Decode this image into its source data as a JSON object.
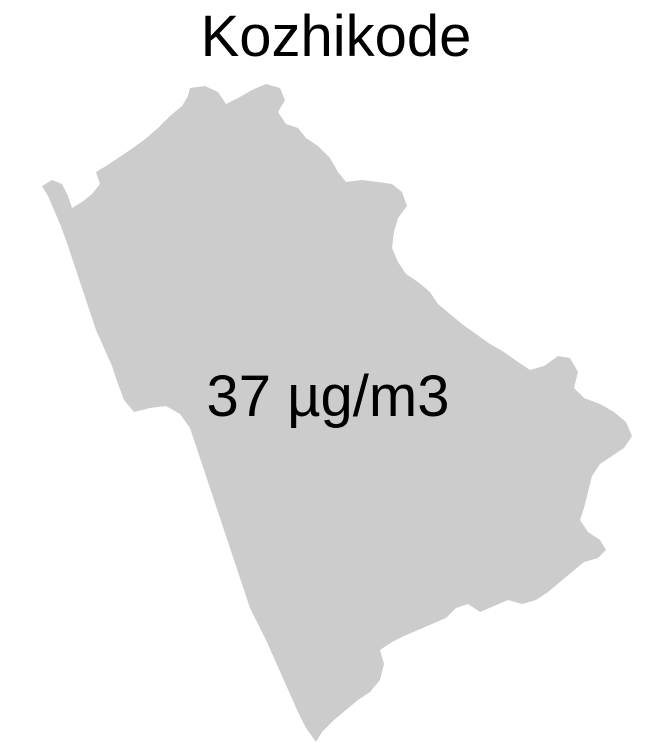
{
  "map": {
    "title": "Kozhikode",
    "value_label": "37 µg/m3",
    "fill_color": "#cccccc",
    "text_color": "#000000",
    "background": "#ffffff"
  }
}
